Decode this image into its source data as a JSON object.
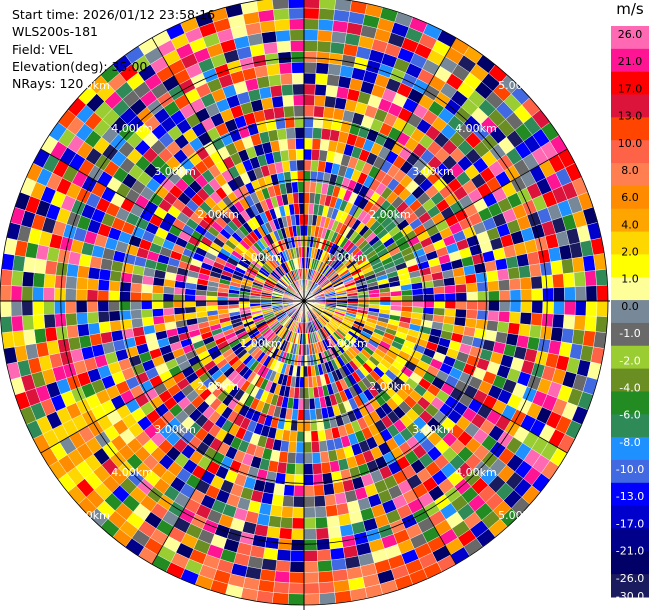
{
  "info": {
    "start_time": "Start time: 2026/01/12 23:58:16",
    "instrument": "WLS200s-181",
    "field": "Field: VEL",
    "elevation": "Elevation(deg): 35.00",
    "nrays": "NRays: 120"
  },
  "chart_data": {
    "type": "ppi",
    "field": "VEL",
    "units": "m/s",
    "elevation_deg": 35.0,
    "nrays": 120,
    "range_rings_km": [
      1.0,
      2.0,
      3.0,
      4.0,
      5.0
    ],
    "range_labels": [
      "1.00km",
      "2.00km",
      "3.00km",
      "4.00km",
      "5.00km"
    ],
    "max_range_km": 5.0,
    "colorbar": {
      "unit": "m/s",
      "colors": [
        "#1a1a5e",
        "#000066",
        "#00008b",
        "#0000cd",
        "#0000ff",
        "#4169e1",
        "#1e90ff",
        "#2e8b57",
        "#228b22",
        "#6b8e23",
        "#9acd32",
        "#696969",
        "#778899",
        "#ffff99",
        "#ffff00",
        "#ffd700",
        "#ffa500",
        "#ff8c00",
        "#ff7f50",
        "#ff6347",
        "#ff4500",
        "#dc143c",
        "#ff0000",
        "#ff1493",
        "#ff69b4"
      ],
      "ticks": [
        "26.0",
        "21.0",
        "17.0",
        "13.0",
        "10.0",
        "8.0",
        "6.0",
        "4.0",
        "2.0",
        "1.0",
        "0.0",
        "-1.0",
        "-2.0",
        "-4.0",
        "-6.0",
        "-8.0",
        "-10.0",
        "-13.0",
        "-17.0",
        "-21.0",
        "-26.0",
        "-30.0"
      ]
    }
  }
}
